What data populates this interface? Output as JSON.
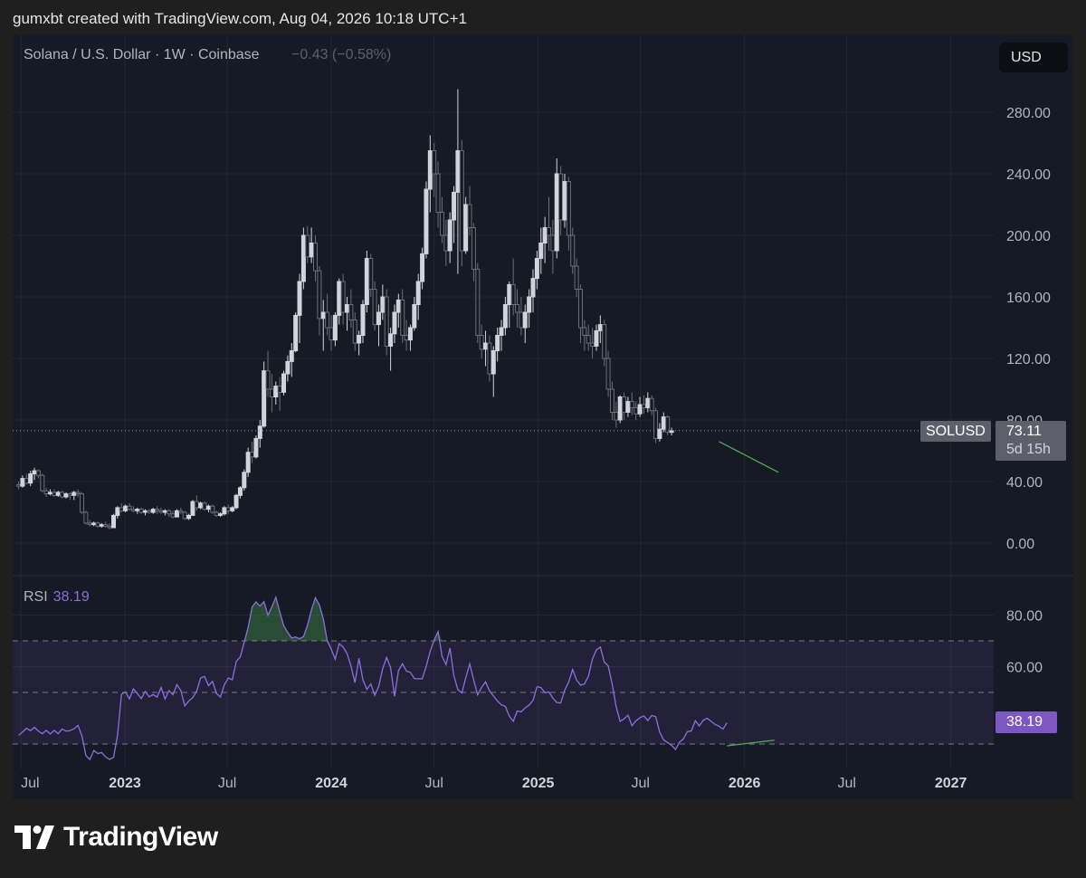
{
  "attribution": "gumxbt created with TradingView.com, Aug 04, 2026 10:18 UTC+1",
  "legend": {
    "title": "Solana / U.S. Dollar · 1W · Coinbase",
    "change": "−0.43 (−0.58%)"
  },
  "currency_button": "USD",
  "rsi_legend": {
    "name": "RSI",
    "value": "38.19"
  },
  "price_tag": {
    "symbol": "SOLUSD",
    "price": "73.11",
    "countdown": "5d 15h"
  },
  "rsi_tag": "38.19",
  "logo_text": "TradingView",
  "colors": {
    "candle_up": "#d1d4dc",
    "candle_down": "#6b6e78",
    "rsi_line": "#8e6ee0",
    "rsi_band": "#7e57c2",
    "divergence": "#4caf50",
    "background": "#161a25"
  },
  "chart_data": [
    {
      "type": "candlestick",
      "title": "Solana / U.S. Dollar · 1W · Coinbase",
      "x_ticks": [
        "Jul",
        "2023",
        "Jul",
        "2024",
        "Jul",
        "2025",
        "Jul",
        "2026",
        "Jul",
        "2027"
      ],
      "y_ticks": [
        "0.00",
        "40.00",
        "80.00",
        "120.00",
        "160.00",
        "200.00",
        "240.00",
        "280.00"
      ],
      "ylim": [
        0,
        290
      ],
      "time_axis": {
        "start": "2022-06-27",
        "interval": "1W"
      },
      "last_price": 73.11,
      "ohlc": [
        [
          38,
          40,
          35,
          37
        ],
        [
          37,
          44,
          36,
          42
        ],
        [
          42,
          45,
          38,
          39
        ],
        [
          39,
          47,
          37,
          45
        ],
        [
          45,
          49,
          41,
          47
        ],
        [
          47,
          48,
          42,
          44
        ],
        [
          44,
          45,
          33,
          34
        ],
        [
          34,
          36,
          30,
          32
        ],
        [
          32,
          35,
          31,
          33
        ],
        [
          33,
          35,
          30,
          31
        ],
        [
          31,
          34,
          30,
          33
        ],
        [
          33,
          34,
          29,
          30
        ],
        [
          30,
          33,
          29,
          32
        ],
        [
          32,
          33,
          28,
          31
        ],
        [
          31,
          34,
          28,
          33
        ],
        [
          33,
          35,
          30,
          32
        ],
        [
          32,
          33,
          19,
          20
        ],
        [
          20,
          21,
          12,
          13
        ],
        [
          13,
          15,
          11,
          12
        ],
        [
          12,
          14,
          11,
          13
        ],
        [
          13,
          14,
          10,
          11
        ],
        [
          11,
          13,
          10,
          12
        ],
        [
          12,
          14,
          10,
          11
        ],
        [
          11,
          13,
          9,
          10
        ],
        [
          10,
          19,
          10,
          18
        ],
        [
          18,
          24,
          16,
          23
        ],
        [
          23,
          26,
          20,
          21
        ],
        [
          21,
          25,
          20,
          24
        ],
        [
          24,
          26,
          21,
          22
        ],
        [
          22,
          24,
          20,
          21
        ],
        [
          21,
          23,
          19,
          22
        ],
        [
          22,
          23,
          19,
          20
        ],
        [
          20,
          22,
          18,
          21
        ],
        [
          21,
          22,
          19,
          20
        ],
        [
          20,
          23,
          19,
          22
        ],
        [
          22,
          24,
          19,
          21
        ],
        [
          21,
          23,
          19,
          20
        ],
        [
          20,
          22,
          18,
          21
        ],
        [
          21,
          22,
          17,
          19
        ],
        [
          19,
          21,
          16,
          17
        ],
        [
          17,
          22,
          17,
          21
        ],
        [
          21,
          23,
          19,
          20
        ],
        [
          20,
          21,
          15,
          16
        ],
        [
          16,
          19,
          15,
          18
        ],
        [
          18,
          28,
          18,
          27
        ],
        [
          27,
          31,
          21,
          23
        ],
        [
          23,
          27,
          22,
          26
        ],
        [
          26,
          27,
          21,
          22
        ],
        [
          22,
          25,
          20,
          24
        ],
        [
          24,
          25,
          19,
          20
        ],
        [
          20,
          21,
          17,
          18
        ],
        [
          18,
          20,
          17,
          19
        ],
        [
          19,
          24,
          18,
          23
        ],
        [
          23,
          25,
          19,
          21
        ],
        [
          21,
          24,
          20,
          23
        ],
        [
          23,
          32,
          22,
          31
        ],
        [
          31,
          37,
          29,
          36
        ],
        [
          36,
          48,
          34,
          46
        ],
        [
          46,
          62,
          43,
          59
        ],
        [
          59,
          66,
          52,
          56
        ],
        [
          56,
          70,
          55,
          68
        ],
        [
          68,
          80,
          62,
          76
        ],
        [
          76,
          118,
          75,
          112
        ],
        [
          112,
          125,
          95,
          100
        ],
        [
          100,
          110,
          85,
          95
        ],
        [
          95,
          105,
          90,
          102
        ],
        [
          102,
          108,
          86,
          98
        ],
        [
          98,
          112,
          96,
          110
        ],
        [
          110,
          122,
          105,
          118
        ],
        [
          118,
          130,
          108,
          125
        ],
        [
          125,
          150,
          124,
          148
        ],
        [
          148,
          175,
          130,
          170
        ],
        [
          170,
          205,
          165,
          200
        ],
        [
          200,
          206,
          182,
          186
        ],
        [
          186,
          205,
          182,
          195
        ],
        [
          195,
          200,
          170,
          177
        ],
        [
          177,
          180,
          135,
          146
        ],
        [
          146,
          158,
          125,
          150
        ],
        [
          150,
          162,
          135,
          140
        ],
        [
          140,
          148,
          125,
          132
        ],
        [
          132,
          150,
          128,
          148
        ],
        [
          148,
          172,
          142,
          170
        ],
        [
          170,
          175,
          142,
          150
        ],
        [
          150,
          160,
          138,
          155
        ],
        [
          155,
          165,
          140,
          145
        ],
        [
          145,
          150,
          125,
          130
        ],
        [
          130,
          138,
          122,
          135
        ],
        [
          135,
          158,
          130,
          155
        ],
        [
          155,
          190,
          150,
          185
        ],
        [
          185,
          188,
          160,
          165
        ],
        [
          165,
          170,
          138,
          142
        ],
        [
          142,
          155,
          128,
          150
        ],
        [
          150,
          168,
          145,
          160
        ],
        [
          160,
          165,
          122,
          128
        ],
        [
          128,
          140,
          112,
          136
        ],
        [
          136,
          155,
          130,
          150
        ],
        [
          150,
          162,
          140,
          158
        ],
        [
          158,
          165,
          130,
          135
        ],
        [
          135,
          145,
          125,
          132
        ],
        [
          132,
          142,
          125,
          140
        ],
        [
          140,
          160,
          138,
          155
        ],
        [
          155,
          175,
          145,
          170
        ],
        [
          170,
          192,
          165,
          188
        ],
        [
          188,
          235,
          185,
          230
        ],
        [
          230,
          265,
          215,
          255
        ],
        [
          255,
          260,
          225,
          240
        ],
        [
          240,
          248,
          205,
          215
        ],
        [
          215,
          225,
          195,
          200
        ],
        [
          200,
          210,
          180,
          190
        ],
        [
          190,
          215,
          182,
          210
        ],
        [
          210,
          232,
          195,
          228
        ],
        [
          228,
          295,
          175,
          255
        ],
        [
          255,
          262,
          180,
          190
        ],
        [
          190,
          225,
          188,
          220
        ],
        [
          220,
          232,
          200,
          205
        ],
        [
          205,
          208,
          170,
          178
        ],
        [
          178,
          182,
          130,
          135
        ],
        [
          135,
          142,
          120,
          126
        ],
        [
          126,
          138,
          115,
          130
        ],
        [
          130,
          135,
          105,
          110
        ],
        [
          110,
          128,
          95,
          125
        ],
        [
          125,
          140,
          118,
          135
        ],
        [
          135,
          145,
          125,
          140
        ],
        [
          140,
          160,
          135,
          155
        ],
        [
          155,
          170,
          140,
          168
        ],
        [
          168,
          185,
          148,
          155
        ],
        [
          155,
          165,
          140,
          150
        ],
        [
          150,
          160,
          135,
          140
        ],
        [
          140,
          155,
          130,
          150
        ],
        [
          150,
          165,
          140,
          160
        ],
        [
          160,
          178,
          150,
          172
        ],
        [
          172,
          190,
          165,
          185
        ],
        [
          185,
          205,
          175,
          195
        ],
        [
          195,
          212,
          182,
          205
        ],
        [
          205,
          225,
          190,
          200
        ],
        [
          200,
          210,
          175,
          190
        ],
        [
          190,
          250,
          185,
          240
        ],
        [
          240,
          245,
          200,
          210
        ],
        [
          210,
          240,
          205,
          235
        ],
        [
          235,
          238,
          190,
          200
        ],
        [
          200,
          205,
          175,
          180
        ],
        [
          180,
          185,
          160,
          165
        ],
        [
          165,
          168,
          130,
          140
        ],
        [
          140,
          145,
          125,
          135
        ],
        [
          135,
          142,
          125,
          130
        ],
        [
          130,
          140,
          120,
          128
        ],
        [
          128,
          142,
          125,
          138
        ],
        [
          138,
          148,
          130,
          142
        ],
        [
          142,
          145,
          115,
          120
        ],
        [
          120,
          125,
          95,
          100
        ],
        [
          100,
          105,
          80,
          85
        ],
        [
          85,
          92,
          75,
          80
        ],
        [
          80,
          96,
          78,
          95
        ],
        [
          95,
          98,
          80,
          85
        ],
        [
          85,
          95,
          82,
          92
        ],
        [
          92,
          98,
          83,
          88
        ],
        [
          88,
          92,
          80,
          84
        ],
        [
          84,
          95,
          82,
          90
        ],
        [
          90,
          96,
          84,
          88
        ],
        [
          88,
          98,
          85,
          94
        ],
        [
          94,
          96,
          83,
          86
        ],
        [
          86,
          88,
          65,
          68
        ],
        [
          68,
          78,
          66,
          74
        ],
        [
          74,
          85,
          72,
          82
        ],
        [
          82,
          83,
          70,
          72
        ],
        [
          72,
          75,
          70,
          73
        ]
      ]
    },
    {
      "type": "line",
      "title": "RSI",
      "y_ticks": [
        "60.00",
        "80.00"
      ],
      "ylim": [
        22,
        95
      ],
      "bands": [
        30,
        50,
        70
      ],
      "last_value": 38.19,
      "values": [
        33.4,
        34.7,
        36.1,
        35.2,
        36.5,
        35.0,
        34.0,
        35.3,
        33.9,
        35.3,
        34.0,
        35.8,
        35.0,
        35.2,
        35.9,
        37.2,
        33.2,
        25.6,
        24.0,
        27.5,
        26.3,
        26.7,
        25.0,
        24.0,
        24.9,
        33.4,
        49.3,
        50.2,
        47.5,
        51.4,
        49.6,
        47.6,
        50.4,
        48.3,
        49.2,
        48.2,
        51.9,
        47.5,
        50.7,
        49.1,
        53.0,
        50.7,
        44.8,
        46.7,
        48.0,
        50.5,
        55.6,
        56.2,
        52.6,
        54.3,
        49.6,
        48.2,
        53.0,
        55.6,
        54.9,
        62.0,
        63.7,
        69.4,
        75.2,
        83.1,
        85.1,
        83.5,
        85.2,
        79.9,
        83.2,
        86.9,
        81.2,
        75.8,
        73.3,
        71.1,
        71.5,
        70.8,
        71.7,
        76.0,
        82.0,
        86.7,
        83.9,
        78.5,
        70.0,
        66.8,
        62.9,
        68.9,
        67.6,
        65.1,
        60.2,
        53.8,
        63.2,
        54.9,
        51.2,
        53.3,
        48.9,
        52.3,
        59.2,
        63.6,
        59.6,
        48.5,
        58.5,
        61.1,
        58.3,
        57.8,
        55.4,
        55.3,
        55.3,
        60.1,
        65.9,
        70.2,
        73.6,
        64.0,
        60.8,
        67.2,
        56.4,
        51.1,
        49.8,
        55.7,
        61.1,
        54.8,
        49.1,
        52.0,
        54.1,
        50.6,
        48.6,
        46.7,
        45.2,
        44.6,
        40.8,
        38.8,
        42.8,
        42.5,
        44.0,
        45.1,
        46.9,
        52.2,
        51.9,
        49.9,
        50.2,
        47.8,
        46.1,
        45.9,
        50.9,
        54.0,
        58.9,
        54.8,
        52.8,
        53.3,
        56.3,
        62.9,
        66.5,
        67.6,
        61.8,
        60.3,
        53.2,
        44.5,
        38.8,
        39.8,
        41.2,
        37.1,
        39.0,
        40.2,
        40.9,
        39.1,
        41.1,
        40.6,
        34.6,
        31.6,
        30.6,
        29.5,
        27.9,
        30.7,
        32.0,
        34.8,
        35.1,
        39.0,
        37.0,
        39.2,
        40.0,
        38.8,
        37.6,
        36.9,
        35.8,
        38.2
      ]
    }
  ]
}
